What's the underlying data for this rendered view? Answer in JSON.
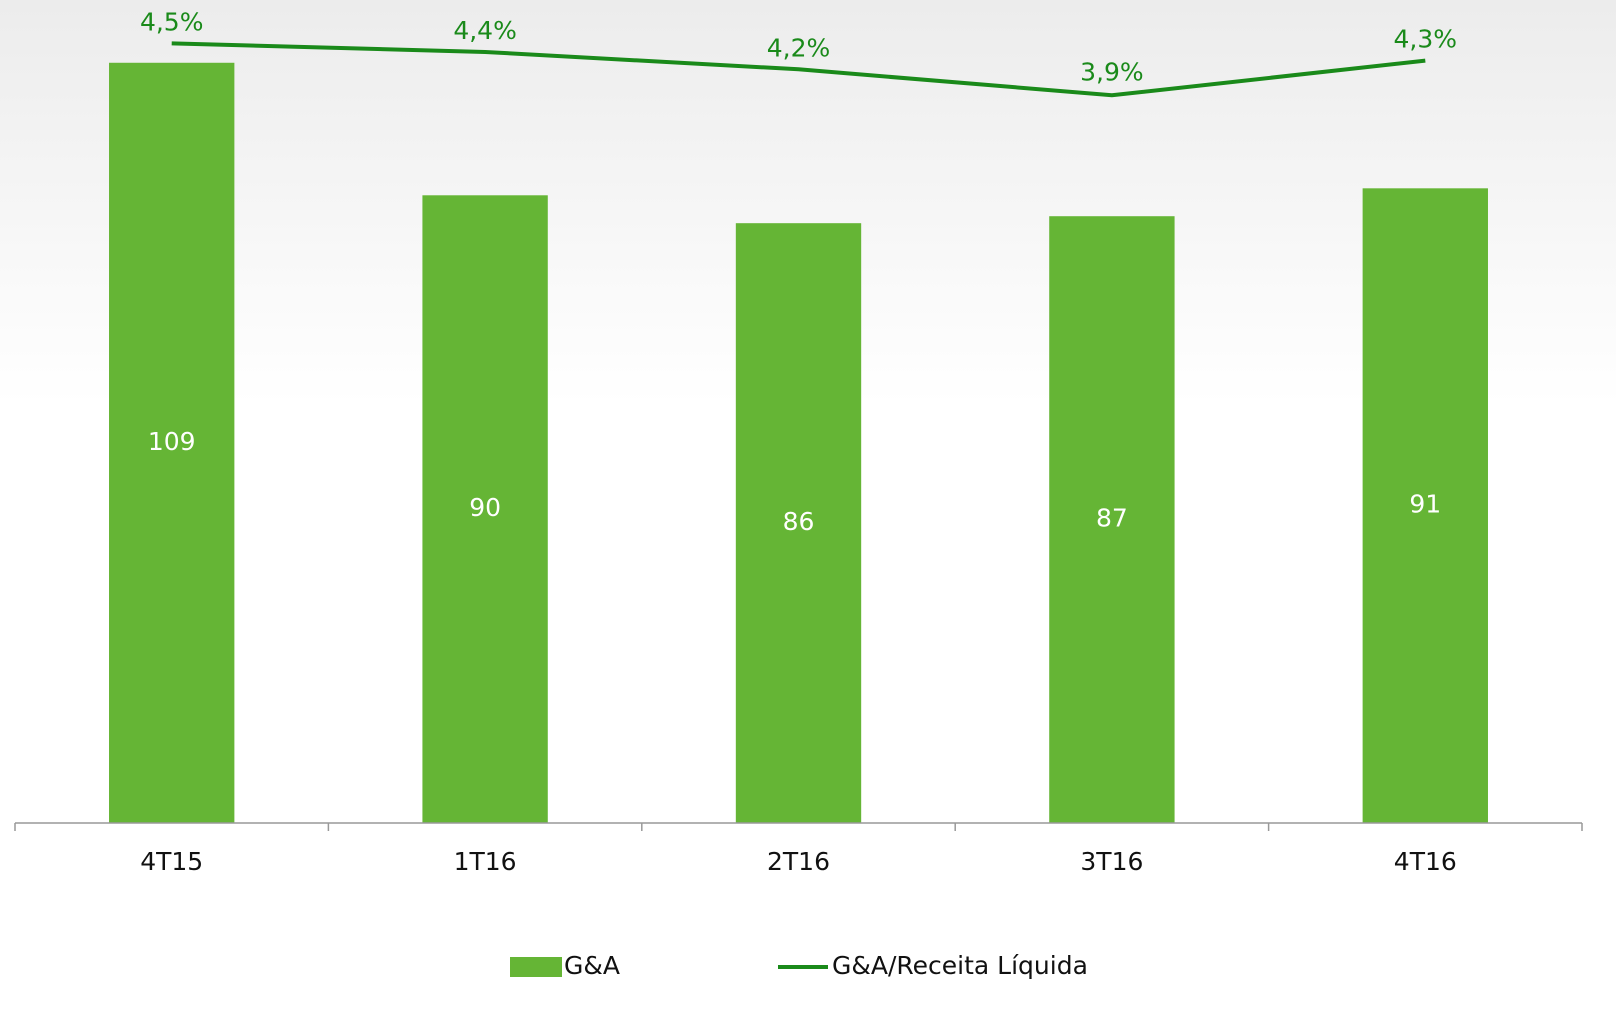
{
  "chart_data": {
    "type": "bar-line",
    "categories": [
      "4T15",
      "1T16",
      "2T16",
      "3T16",
      "4T16"
    ],
    "series": [
      {
        "name": "G&A",
        "type": "bar",
        "color": "#65b535",
        "values": [
          109,
          90,
          86,
          87,
          91
        ]
      },
      {
        "name": "G&A/Receita Líquida",
        "type": "line",
        "axis": "y2",
        "color": "#1a8a1a",
        "values": [
          4.5,
          4.4,
          4.2,
          3.9,
          4.3
        ],
        "value_labels": [
          "4,5%",
          "4,4%",
          "4,2%",
          "3,9%",
          "4,3%"
        ]
      }
    ],
    "ylim": [
      0,
      118
    ],
    "y2lim": [
      -4.5,
      5
    ],
    "legend": "bottom"
  }
}
